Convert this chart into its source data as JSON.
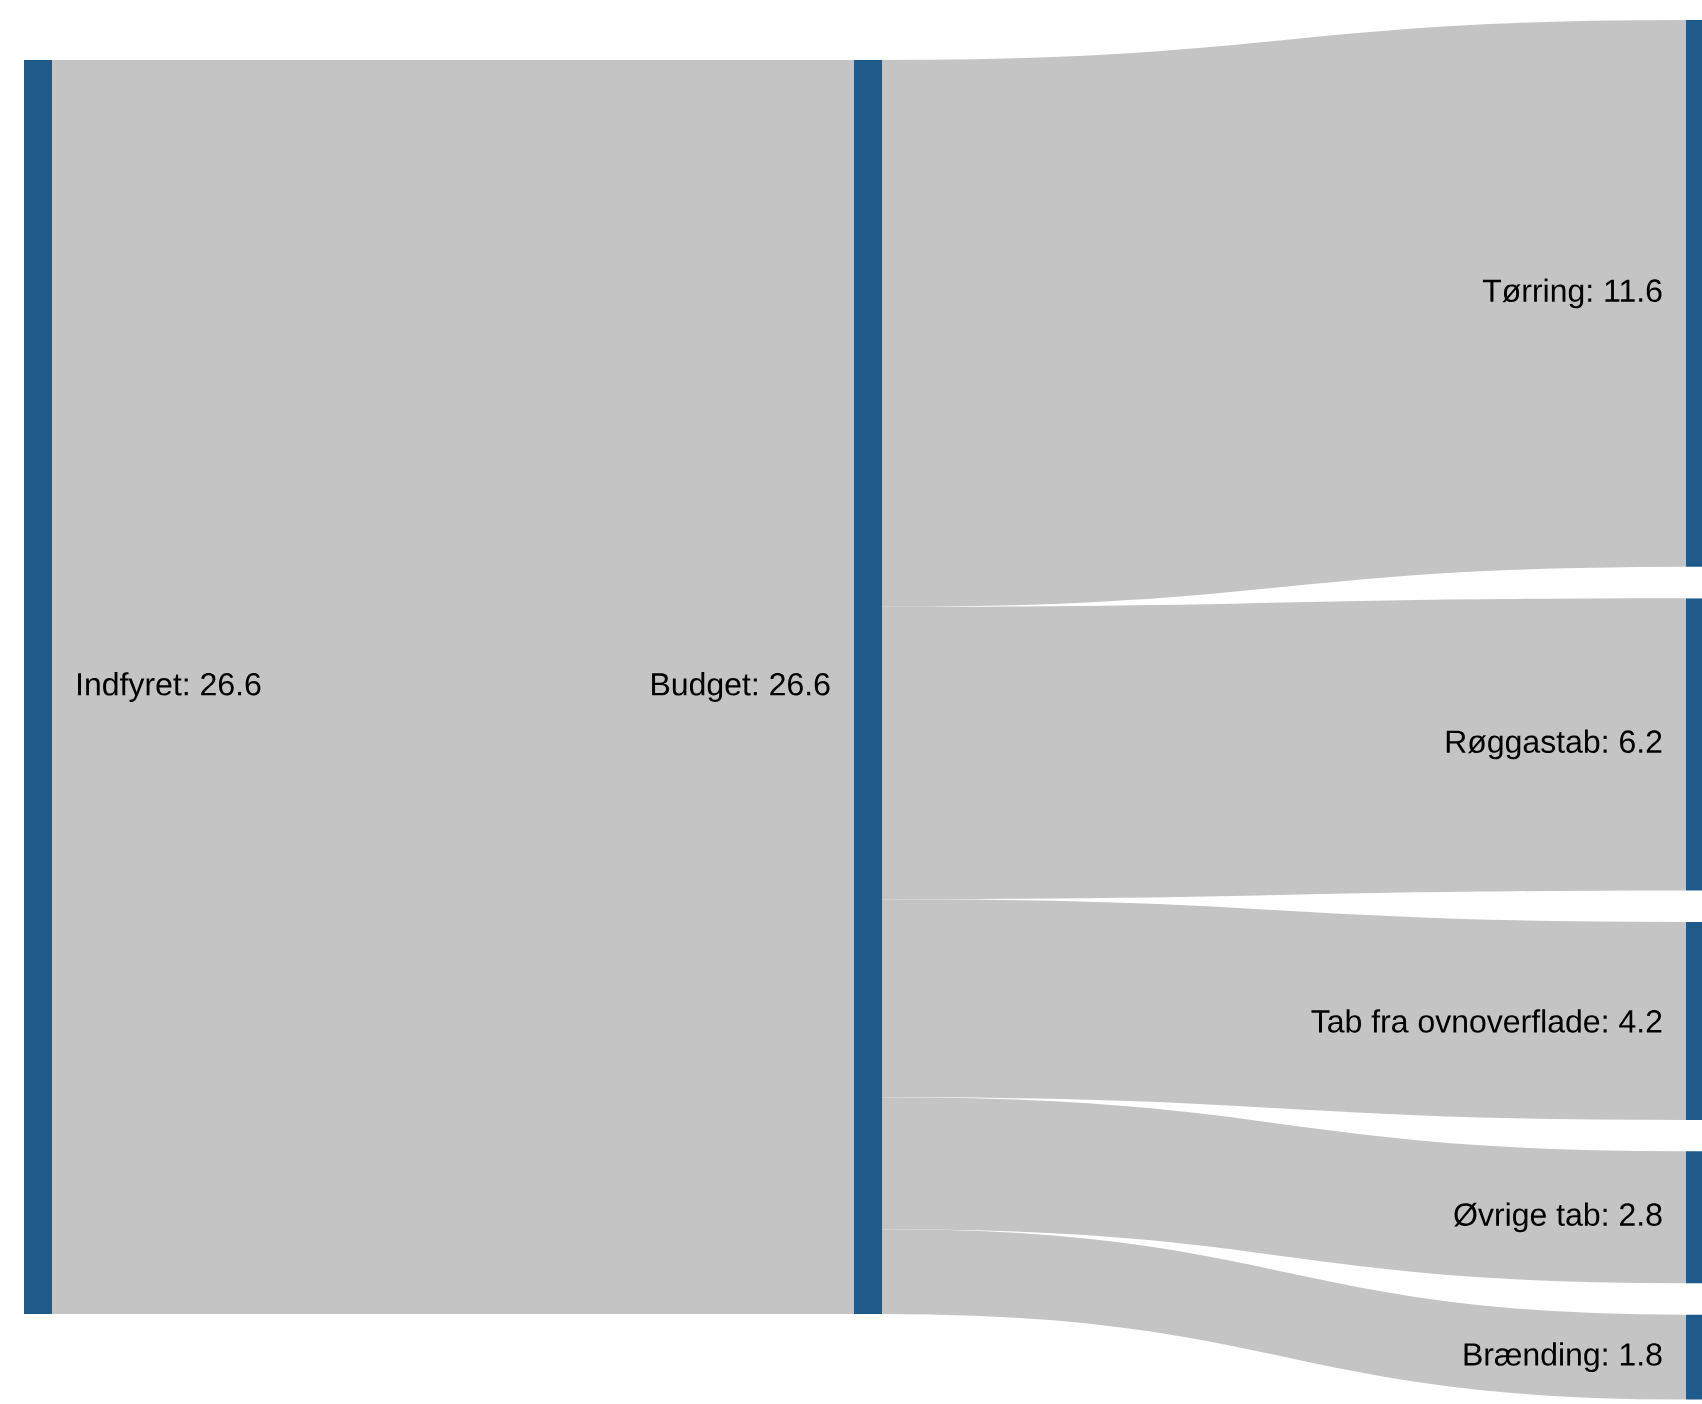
{
  "chart_data": {
    "type": "other",
    "categories": [
      "Indfyret",
      "Budget",
      "Tørring",
      "Røggastab",
      "Tab fra ovnoverflade",
      "Øvrige tab",
      "Brænding"
    ],
    "values": [
      26.6,
      26.6,
      11.6,
      6.2,
      4.2,
      2.8,
      1.8
    ],
    "data_labels": true,
    "annotations": [
      ":",
      ":",
      ":",
      ":",
      ":",
      ":",
      ":"
    ],
    "colors": [
      "#c4c4c4",
      "#c4c4c4",
      "#c4c4c4",
      "#c4c4c4",
      "#c4c4c4",
      "#c4c4c4",
      "#c4c4c4"
    ]
  }
}
